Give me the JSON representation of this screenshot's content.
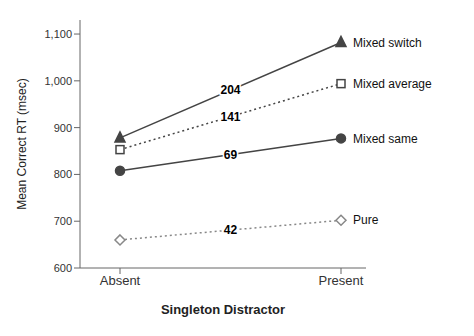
{
  "chart_data": {
    "type": "line",
    "categories": [
      "Absent",
      "Present"
    ],
    "series": [
      {
        "name": "Mixed switch",
        "color": "#444444",
        "marker": "triangle",
        "line_style": "solid",
        "values": [
          878,
          1082
        ]
      },
      {
        "name": "Mixed average",
        "color": "#444444",
        "marker": "square-open",
        "line_style": "dotted",
        "values": [
          853,
          994
        ]
      },
      {
        "name": "Mixed same",
        "color": "#444444",
        "marker": "circle",
        "line_style": "solid",
        "values": [
          808,
          877
        ]
      },
      {
        "name": "Pure",
        "color": "#888888",
        "marker": "diamond-open",
        "line_style": "dotted",
        "values": [
          660,
          702
        ]
      }
    ],
    "annotations": [
      "204",
      "141",
      "69",
      "42"
    ],
    "xlabel": "Singleton Distractor",
    "ylabel": "Mean Correct RT (msec)",
    "ylim": [
      600,
      1130
    ],
    "yticks": [
      600,
      700,
      800,
      900,
      {
        "value": 1000,
        "label": "1,000"
      },
      {
        "value": 1100,
        "label": "1,100"
      }
    ],
    "grid": false
  }
}
